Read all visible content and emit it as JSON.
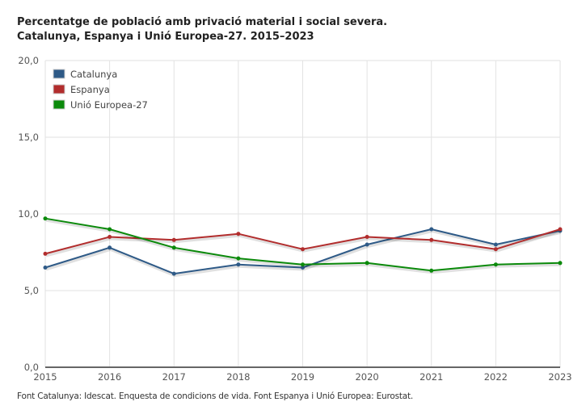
{
  "chart_data": {
    "type": "line",
    "title": "Percentatge de població amb privació material i social severa.",
    "subtitle": "Catalunya, Espanya i Unió Europea-27. 2015–2023",
    "xlabel": "",
    "ylabel": "",
    "x": [
      "2015",
      "2016",
      "2017",
      "2018",
      "2019",
      "2020",
      "2021",
      "2022",
      "2023"
    ],
    "ylim": [
      0,
      20
    ],
    "yticks": [
      0,
      5,
      10,
      15,
      20
    ],
    "ytick_labels": [
      "0,0",
      "5,0",
      "10,0",
      "15,0",
      "20,0"
    ],
    "grid": true,
    "legend_position": "top-left",
    "series": [
      {
        "name": "Catalunya",
        "color": "#2e5a87",
        "values": [
          6.5,
          7.8,
          6.1,
          6.7,
          6.5,
          8.0,
          9.0,
          8.0,
          8.9
        ]
      },
      {
        "name": "Espanya",
        "color": "#b22d2d",
        "values": [
          7.4,
          8.5,
          8.3,
          8.7,
          7.7,
          8.5,
          8.3,
          7.7,
          9.0
        ]
      },
      {
        "name": "Unió Europea-27",
        "color": "#0b8a0b",
        "values": [
          9.7,
          9.0,
          7.8,
          7.1,
          6.7,
          6.8,
          6.3,
          6.7,
          6.8
        ]
      }
    ],
    "source": "Font Catalunya: Idescat. Enquesta de condicions de vida. Font Espanya i Unió Europea: Eurostat."
  }
}
